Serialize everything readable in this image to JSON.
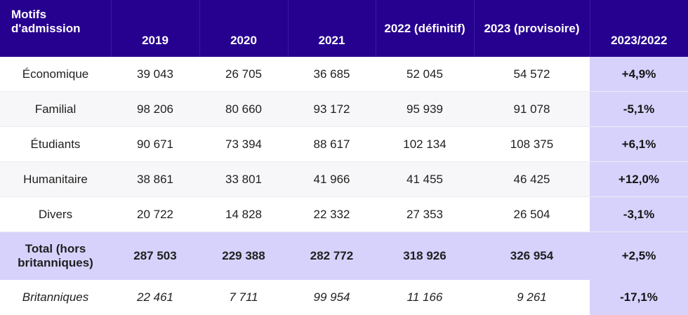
{
  "table": {
    "headers": [
      "Motifs d'admission",
      "2019",
      "2020",
      "2021",
      "2022 (définitif)",
      "2023 (provisoire)",
      "2023/2022"
    ],
    "rows": [
      {
        "motif": "Économique",
        "v2019": "39 043",
        "v2020": "26 705",
        "v2021": "36 685",
        "v2022": "52 045",
        "v2023": "54 572",
        "var": "+4,9%"
      },
      {
        "motif": "Familial",
        "v2019": "98 206",
        "v2020": "80 660",
        "v2021": "93 172",
        "v2022": "95 939",
        "v2023": "91 078",
        "var": "-5,1%"
      },
      {
        "motif": "Étudiants",
        "v2019": "90 671",
        "v2020": "73 394",
        "v2021": "88 617",
        "v2022": "102 134",
        "v2023": "108 375",
        "var": "+6,1%"
      },
      {
        "motif": "Humanitaire",
        "v2019": "38 861",
        "v2020": "33 801",
        "v2021": "41 966",
        "v2022": "41 455",
        "v2023": "46 425",
        "var": "+12,0%"
      },
      {
        "motif": "Divers",
        "v2019": "20 722",
        "v2020": "14 828",
        "v2021": "22 332",
        "v2022": "27 353",
        "v2023": "26 504",
        "var": "-3,1%"
      }
    ],
    "total": {
      "motif": "Total (hors britanniques)",
      "v2019": "287 503",
      "v2020": "229 388",
      "v2021": "282 772",
      "v2022": "318 926",
      "v2023": "326 954",
      "var": "+2,5%"
    },
    "britanniques": {
      "motif": "Britanniques",
      "v2019": "22 461",
      "v2020": "7 711",
      "v2021": "99 954",
      "v2022": "11 166",
      "v2023": "9 261",
      "var": "-17,1%"
    }
  },
  "colors": {
    "header_bg": "#26008f",
    "header_text": "#ffffff",
    "highlight": "#d7d2fc"
  }
}
